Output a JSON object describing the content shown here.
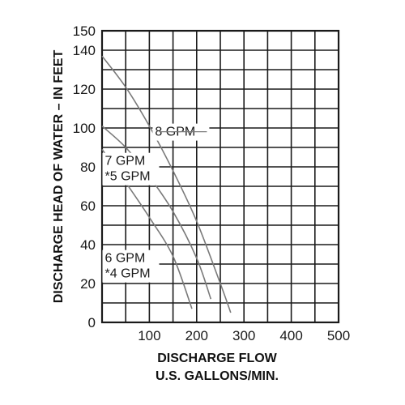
{
  "chart_data": {
    "type": "line",
    "xlabel_lines": [
      "DISCHARGE FLOW",
      "U.S. GALLONS/MIN."
    ],
    "ylabel": "DISCHARGE HEAD OF WATER – IN FEET",
    "xlim": [
      0,
      500
    ],
    "ylim": [
      0,
      150
    ],
    "xgrid_step": 50,
    "ygrid_step": 10,
    "xticks": [
      100,
      200,
      300,
      400,
      500
    ],
    "xtick_labels": [
      "100",
      "200",
      "300",
      "400",
      "500"
    ],
    "yticks": [
      0,
      20,
      40,
      60,
      80,
      100,
      120,
      140,
      150
    ],
    "ytick_labels": [
      "0",
      "20",
      "40",
      "60",
      "80",
      "100",
      "120",
      "140",
      "150"
    ],
    "grid": true,
    "colors": {
      "grid": "#1a1a1a",
      "curve": "#7a7a7a",
      "text": "#1a1a1a"
    },
    "annotations": [
      {
        "lines": [
          "8 GPM"
        ],
        "curve": 0,
        "x": 112,
        "y": 96
      },
      {
        "lines": [
          "7 GPM",
          "*5 GPM"
        ],
        "curve": 1,
        "x": 6,
        "y": 77
      },
      {
        "lines": [
          "6 GPM",
          "*4 GPM"
        ],
        "curve": 2,
        "x": 6,
        "y": 27
      }
    ],
    "series": [
      {
        "x": [
          0,
          50,
          100,
          150,
          200,
          250,
          272
        ],
        "y": [
          137,
          121,
          101,
          78,
          52,
          20,
          5
        ]
      },
      {
        "x": [
          0,
          50,
          100,
          150,
          200,
          230
        ],
        "y": [
          101,
          90,
          75,
          57,
          33,
          12
        ]
      },
      {
        "x": [
          0,
          50,
          100,
          150,
          190
        ],
        "y": [
          89,
          72,
          54,
          34,
          7
        ]
      }
    ]
  }
}
